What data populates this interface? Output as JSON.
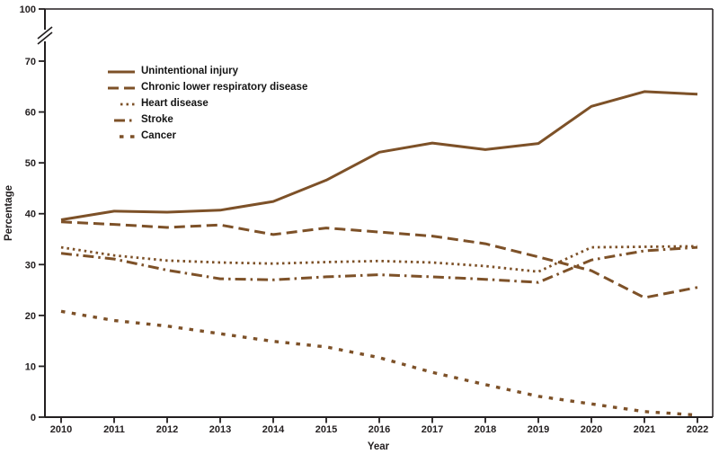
{
  "figure": {
    "background": "#ffffff"
  },
  "chart_data": {
    "type": "line",
    "title": "",
    "xlabel": "Year",
    "ylabel": "Percentage",
    "x": [
      2010,
      2011,
      2012,
      2013,
      2014,
      2015,
      2016,
      2017,
      2018,
      2019,
      2020,
      2021,
      2022
    ],
    "yticks": [
      0,
      10,
      20,
      30,
      40,
      50,
      60,
      70
    ],
    "y_break_top_tick": 100,
    "axis_break_between": [
      70,
      100
    ],
    "ylim": [
      0,
      100
    ],
    "grid": false,
    "legend_position": "upper-left-inside",
    "line_color": "#7d5128",
    "axis_color": "#231f20",
    "series": [
      {
        "name": "Unintentional injury",
        "style": "solid",
        "values": [
          38.8,
          40.5,
          40.3,
          40.7,
          42.4,
          46.6,
          52.1,
          53.9,
          52.6,
          53.8,
          61.1,
          64.0,
          63.5
        ]
      },
      {
        "name": "Chronic lower respiratory disease",
        "style": "long-dash",
        "values": [
          38.4,
          37.9,
          37.3,
          37.8,
          35.9,
          37.2,
          36.4,
          35.6,
          34.1,
          31.5,
          28.8,
          23.5,
          25.5
        ]
      },
      {
        "name": "Heart disease",
        "style": "dotted",
        "values": [
          33.4,
          31.8,
          30.8,
          30.4,
          30.2,
          30.5,
          30.7,
          30.4,
          29.7,
          28.6,
          33.4,
          33.5,
          33.6
        ]
      },
      {
        "name": "Stroke",
        "style": "dash-dot",
        "values": [
          32.2,
          31.1,
          28.9,
          27.2,
          27.0,
          27.6,
          28.0,
          27.6,
          27.1,
          26.5,
          30.9,
          32.7,
          33.4
        ]
      },
      {
        "name": "Cancer",
        "style": "square-dash",
        "values": [
          20.8,
          19.0,
          17.9,
          16.4,
          14.9,
          13.8,
          11.7,
          8.8,
          6.4,
          4.1,
          2.6,
          1.1,
          0.4
        ]
      }
    ]
  }
}
